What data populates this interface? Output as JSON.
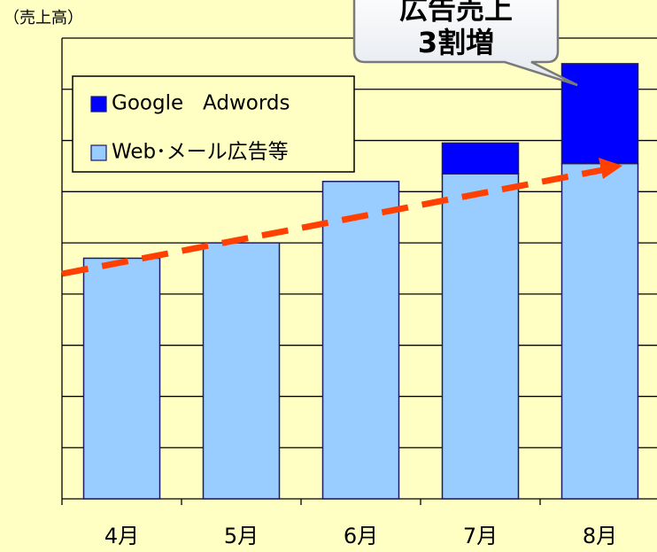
{
  "chart_data": {
    "type": "stacked_bar",
    "y_label": "（売上高）",
    "categories": [
      "4月",
      "5月",
      "6月",
      "7月",
      "8月"
    ],
    "series": [
      {
        "name": "Web･メール広告等",
        "color": "#99ccff",
        "values": [
          4.7,
          5.0,
          6.2,
          6.35,
          6.55
        ]
      },
      {
        "name": "Google   Adwords",
        "color": "#0000ff",
        "values": [
          0,
          0,
          0,
          0.6,
          1.95
        ]
      }
    ],
    "ylim": [
      0,
      9
    ],
    "yticks": [
      0,
      1,
      2,
      3,
      4,
      5,
      6,
      7,
      8,
      9
    ],
    "grid": true,
    "annotation": [
      "広告売上",
      "3割増"
    ]
  }
}
